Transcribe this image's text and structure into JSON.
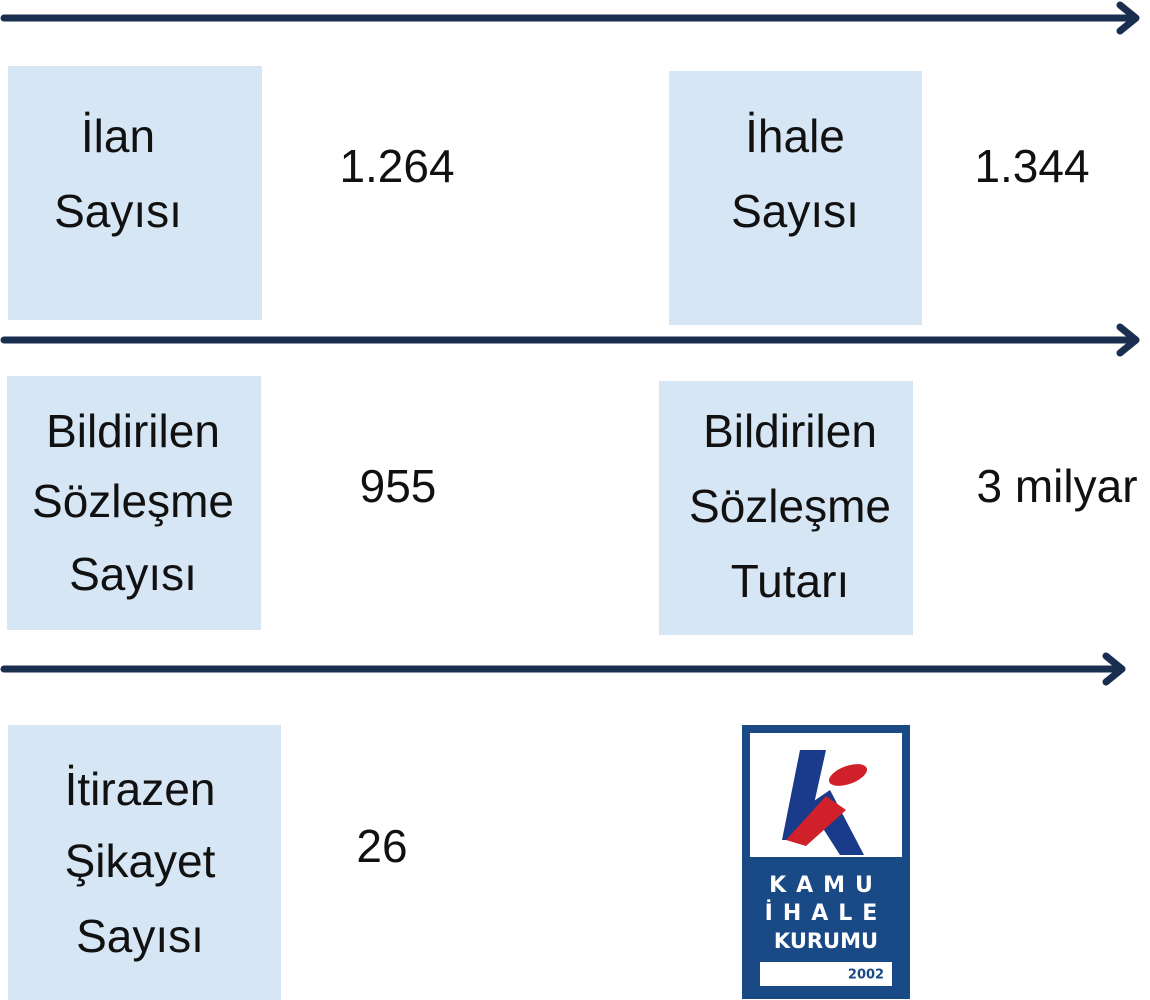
{
  "items": [
    {
      "label": [
        "İlan",
        "Sayısı"
      ],
      "value": "1.264"
    },
    {
      "label": [
        "İhale",
        "Sayısı"
      ],
      "value": "1.344"
    },
    {
      "label": [
        "Bildirilen",
        "Sözleşme",
        "Sayısı"
      ],
      "value": "955"
    },
    {
      "label": [
        "Bildirilen",
        "Sözleşme",
        "Tutarı"
      ],
      "value": "3 milyar"
    },
    {
      "label": [
        "İtirazen",
        "Şikayet",
        "Sayısı"
      ],
      "value": "26"
    }
  ],
  "logo": {
    "lines": [
      "KAMU",
      "İHALE",
      "KURUMU"
    ],
    "year": "2002"
  }
}
